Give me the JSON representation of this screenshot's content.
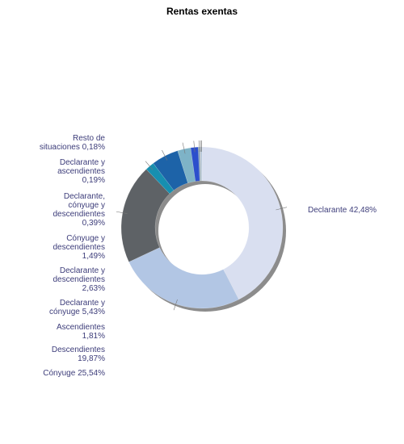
{
  "chart_data": {
    "type": "pie",
    "title": "Rentas exentas",
    "donut": true,
    "slices": [
      {
        "label": "Declarante 42,48%",
        "value": 42.48,
        "color": "#d9dff0"
      },
      {
        "label": "Cónyuge 25,54%",
        "value": 25.54,
        "color": "#b2c6e4"
      },
      {
        "label": "Descendientes\n19,87%",
        "value": 19.87,
        "color": "#5e6266"
      },
      {
        "label": "Ascendientes\n1,81%",
        "value": 1.81,
        "color": "#178fb0"
      },
      {
        "label": "Declarante y\ncónyuge 5,43%",
        "value": 5.43,
        "color": "#1d63a8"
      },
      {
        "label": "Declarante y\ndescendientes\n2,63%",
        "value": 2.63,
        "color": "#7eb3c7"
      },
      {
        "label": "Cónyuge y\ndescendientes\n1,49%",
        "value": 1.49,
        "color": "#2c4fcc"
      },
      {
        "label": "Declarante,\ncónyuge y\ndescendientes\n0,39%",
        "value": 0.39,
        "color": "#8aa5b5"
      },
      {
        "label": "Declarante y\nascendientes\n0,19%",
        "value": 0.19,
        "color": "#c9ced6"
      },
      {
        "label": "Resto de\nsituaciones 0,18%",
        "value": 0.18,
        "color": "#9fb8d1"
      }
    ],
    "legend": "labels"
  }
}
